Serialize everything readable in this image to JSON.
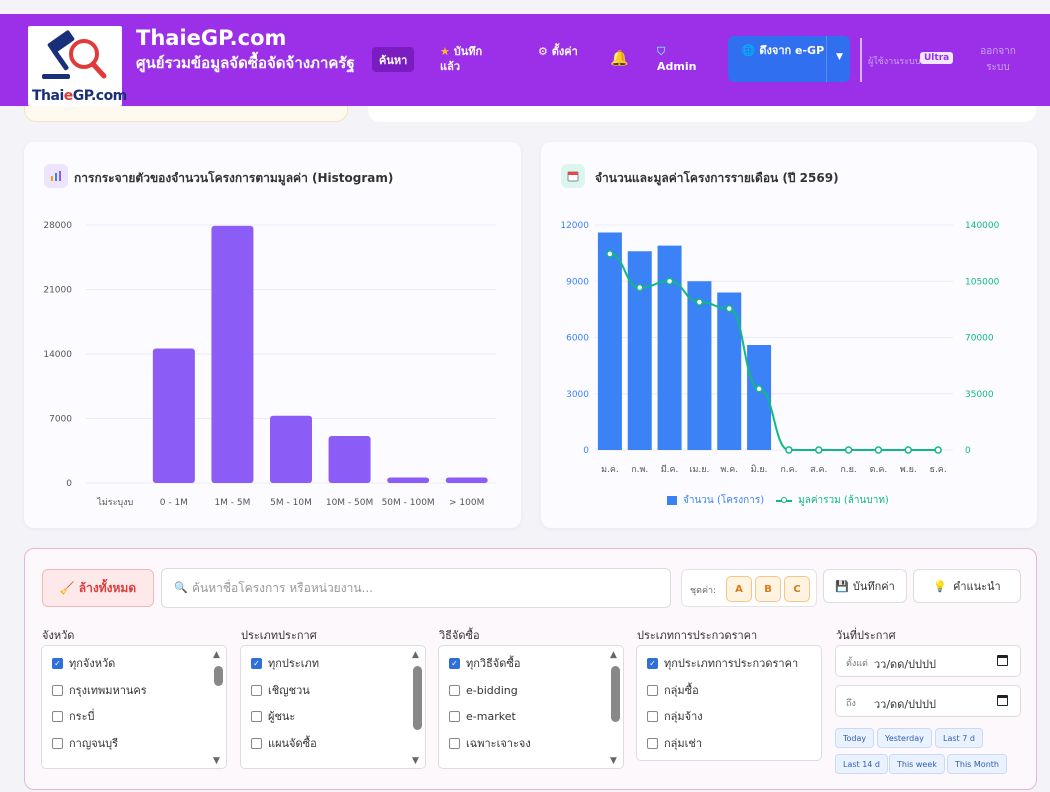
{
  "header": {
    "logo_text_a": "Thai",
    "logo_text_e": "e",
    "logo_text_b": "GP.com",
    "title": "ThaieGP.com",
    "subtitle": "ศูนย์รวมข้อมูลจัดซื้อจัดจ้างภาครัฐ",
    "nav_search": "ค้นหา",
    "nav_saved": "บันทึกแล้ว",
    "nav_settings": "ตั้งค่า",
    "nav_admin": "Admin",
    "btn_egp": "ดึงจาก e-GP",
    "user_name": "ผู้ใช้งานระบบ",
    "badge": "Ultra",
    "logout": "ออกจากระบบ"
  },
  "charts": {
    "histogram_title": "การกระจายตัวของจำนวนโครงการตามมูลค่า (Histogram)",
    "monthly_title": "จำนวนและมูลค่าโครงการรายเดือน (ปี 2569)",
    "monthly_legend_count": "จำนวน (โครงการ)",
    "monthly_legend_value": "มูลค่ารวม (ล้านบาท)"
  },
  "chart_data": [
    {
      "type": "bar",
      "title": "การกระจายตัวของจำนวนโครงการตามมูลค่า (Histogram)",
      "categories": [
        "ไม่ระบุงบ",
        "0 - 1M",
        "1M - 5M",
        "5M - 10M",
        "10M - 50M",
        "50M - 100M",
        "> 100M"
      ],
      "values": [
        0,
        14600,
        27900,
        7300,
        5100,
        600,
        600
      ],
      "ylim": [
        0,
        28000
      ],
      "yticks": [
        0,
        7000,
        14000,
        21000,
        28000
      ],
      "color": "#8b5cf6"
    },
    {
      "type": "bar",
      "title": "จำนวนและมูลค่าโครงการรายเดือน (ปี 2569)",
      "categories": [
        "ม.ค.",
        "ก.พ.",
        "มี.ค.",
        "เม.ย.",
        "พ.ค.",
        "มิ.ย.",
        "ก.ค.",
        "ส.ค.",
        "ก.ย.",
        "ต.ค.",
        "พ.ย.",
        "ธ.ค."
      ],
      "series": [
        {
          "name": "จำนวน (โครงการ)",
          "type": "bar",
          "axis": "left",
          "color": "#3b82f6",
          "values": [
            11600,
            10600,
            10900,
            9000,
            8400,
            5600,
            0,
            0,
            0,
            0,
            0,
            0
          ]
        },
        {
          "name": "มูลค่ารวม (ล้านบาท)",
          "type": "line",
          "axis": "right",
          "color": "#10b981",
          "values": [
            122000,
            101000,
            105000,
            92000,
            88000,
            38000,
            0,
            0,
            0,
            0,
            0,
            0
          ]
        }
      ],
      "ylim": [
        0,
        12000
      ],
      "yticks": [
        0,
        3000,
        6000,
        9000,
        12000
      ],
      "y2lim": [
        0,
        140000
      ],
      "y2ticks": [
        0,
        35000,
        70000,
        105000,
        140000
      ],
      "legend": "bottom"
    }
  ],
  "filters": {
    "clear_label": "ล้างทั้งหมด",
    "search_placeholder": "ค้นหาชื่อโครงการ หรือหน่วยงาน...",
    "preset_label": "ชุดค่า:",
    "presets": [
      "A",
      "B",
      "C"
    ],
    "save_label": "บันทึกค่า",
    "tips_label": "คำแนะนำ",
    "province": {
      "label": "จังหวัด",
      "items": [
        {
          "text": "ทุกจังหวัด",
          "checked": true
        },
        {
          "text": "กรุงเทพมหานคร",
          "checked": false
        },
        {
          "text": "กระบี่",
          "checked": false
        },
        {
          "text": "กาญจนบุรี",
          "checked": false
        }
      ]
    },
    "announce_type": {
      "label": "ประเภทประกาศ",
      "items": [
        {
          "text": "ทุกประเภท",
          "checked": true
        },
        {
          "text": "เชิญชวน",
          "checked": false
        },
        {
          "text": "ผู้ชนะ",
          "checked": false
        },
        {
          "text": "แผนจัดซื้อ",
          "checked": false
        }
      ]
    },
    "method": {
      "label": "วิธีจัดซื้อ",
      "items": [
        {
          "text": "ทุกวิธีจัดซื้อ",
          "checked": true
        },
        {
          "text": "e-bidding",
          "checked": false
        },
        {
          "text": "e-market",
          "checked": false
        },
        {
          "text": "เฉพาะเจาะจง",
          "checked": false
        }
      ]
    },
    "procurement_type": {
      "label": "ประเภทการประกวดราคา",
      "items": [
        {
          "text": "ทุกประเภทการประกวดราคา",
          "checked": true
        },
        {
          "text": "กลุ่มซื้อ",
          "checked": false
        },
        {
          "text": "กลุ่มจ้าง",
          "checked": false
        },
        {
          "text": "กลุ่มเช่า",
          "checked": false
        }
      ]
    },
    "date": {
      "label": "วันที่ประกาศ",
      "from_label": "ตั้งแต่",
      "to_label": "ถึง",
      "placeholder": "วว/ดด/ปปปป",
      "quick": [
        "Today",
        "Yesterday",
        "Last 7 d",
        "Last 14 d",
        "This week",
        "This Month"
      ]
    }
  }
}
